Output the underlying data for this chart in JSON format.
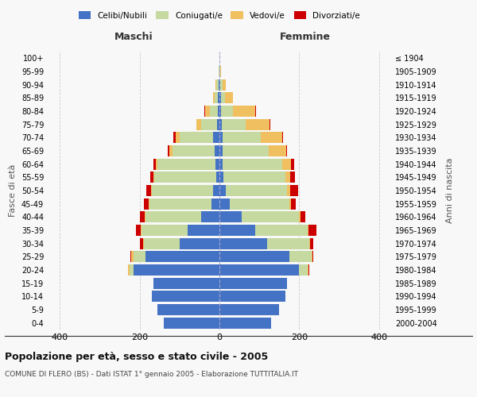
{
  "age_groups": [
    "0-4",
    "5-9",
    "10-14",
    "15-19",
    "20-24",
    "25-29",
    "30-34",
    "35-39",
    "40-44",
    "45-49",
    "50-54",
    "55-59",
    "60-64",
    "65-69",
    "70-74",
    "75-79",
    "80-84",
    "85-89",
    "90-94",
    "95-99",
    "100+"
  ],
  "birth_years": [
    "2000-2004",
    "1995-1999",
    "1990-1994",
    "1985-1989",
    "1980-1984",
    "1975-1979",
    "1970-1974",
    "1965-1969",
    "1960-1964",
    "1955-1959",
    "1950-1954",
    "1945-1949",
    "1940-1944",
    "1935-1939",
    "1930-1934",
    "1925-1929",
    "1920-1924",
    "1915-1919",
    "1910-1914",
    "1905-1909",
    "≤ 1904"
  ],
  "maschi_celibi": [
    140,
    155,
    170,
    165,
    215,
    185,
    100,
    80,
    45,
    20,
    15,
    8,
    10,
    12,
    15,
    6,
    4,
    3,
    2,
    0,
    0
  ],
  "maschi_coniugati": [
    0,
    0,
    0,
    0,
    10,
    30,
    90,
    115,
    140,
    155,
    155,
    155,
    145,
    105,
    85,
    40,
    20,
    8,
    5,
    1,
    0
  ],
  "maschi_vedovi": [
    0,
    0,
    0,
    0,
    3,
    5,
    2,
    2,
    2,
    2,
    2,
    2,
    5,
    8,
    10,
    12,
    12,
    5,
    2,
    0,
    0
  ],
  "maschi_divorziati": [
    0,
    0,
    0,
    0,
    0,
    2,
    8,
    12,
    12,
    12,
    12,
    8,
    5,
    5,
    5,
    0,
    2,
    0,
    0,
    0,
    0
  ],
  "femmine_celibi": [
    130,
    150,
    165,
    170,
    200,
    175,
    120,
    90,
    55,
    25,
    15,
    10,
    8,
    8,
    8,
    5,
    4,
    3,
    2,
    0,
    0
  ],
  "femmine_coniugati": [
    0,
    0,
    0,
    0,
    20,
    55,
    105,
    130,
    145,
    150,
    155,
    155,
    150,
    115,
    95,
    60,
    30,
    10,
    5,
    1,
    0
  ],
  "femmine_vedovi": [
    0,
    0,
    0,
    0,
    2,
    2,
    2,
    2,
    3,
    5,
    8,
    12,
    22,
    45,
    55,
    60,
    55,
    20,
    8,
    2,
    0
  ],
  "femmine_divorziati": [
    0,
    0,
    0,
    0,
    2,
    2,
    8,
    20,
    12,
    12,
    20,
    12,
    8,
    2,
    2,
    2,
    2,
    0,
    0,
    0,
    0
  ],
  "colors": {
    "celibi": "#4472C4",
    "coniugati": "#C5D9A0",
    "vedovi": "#F0C060",
    "divorziati": "#CC0000"
  },
  "legend_labels": [
    "Celibi/Nubili",
    "Coniugati/e",
    "Vedovi/e",
    "Divorziati/e"
  ],
  "title": "Popolazione per età, sesso e stato civile - 2005",
  "subtitle": "COMUNE DI FLERO (BS) - Dati ISTAT 1° gennaio 2005 - Elaborazione TUTTITALIA.IT",
  "label_maschi": "Maschi",
  "label_femmine": "Femmine",
  "ylabel_left": "Fasce di età",
  "ylabel_right": "Anni di nascita",
  "xlim": 430,
  "background_color": "#f8f8f8",
  "grid_color": "#cccccc"
}
